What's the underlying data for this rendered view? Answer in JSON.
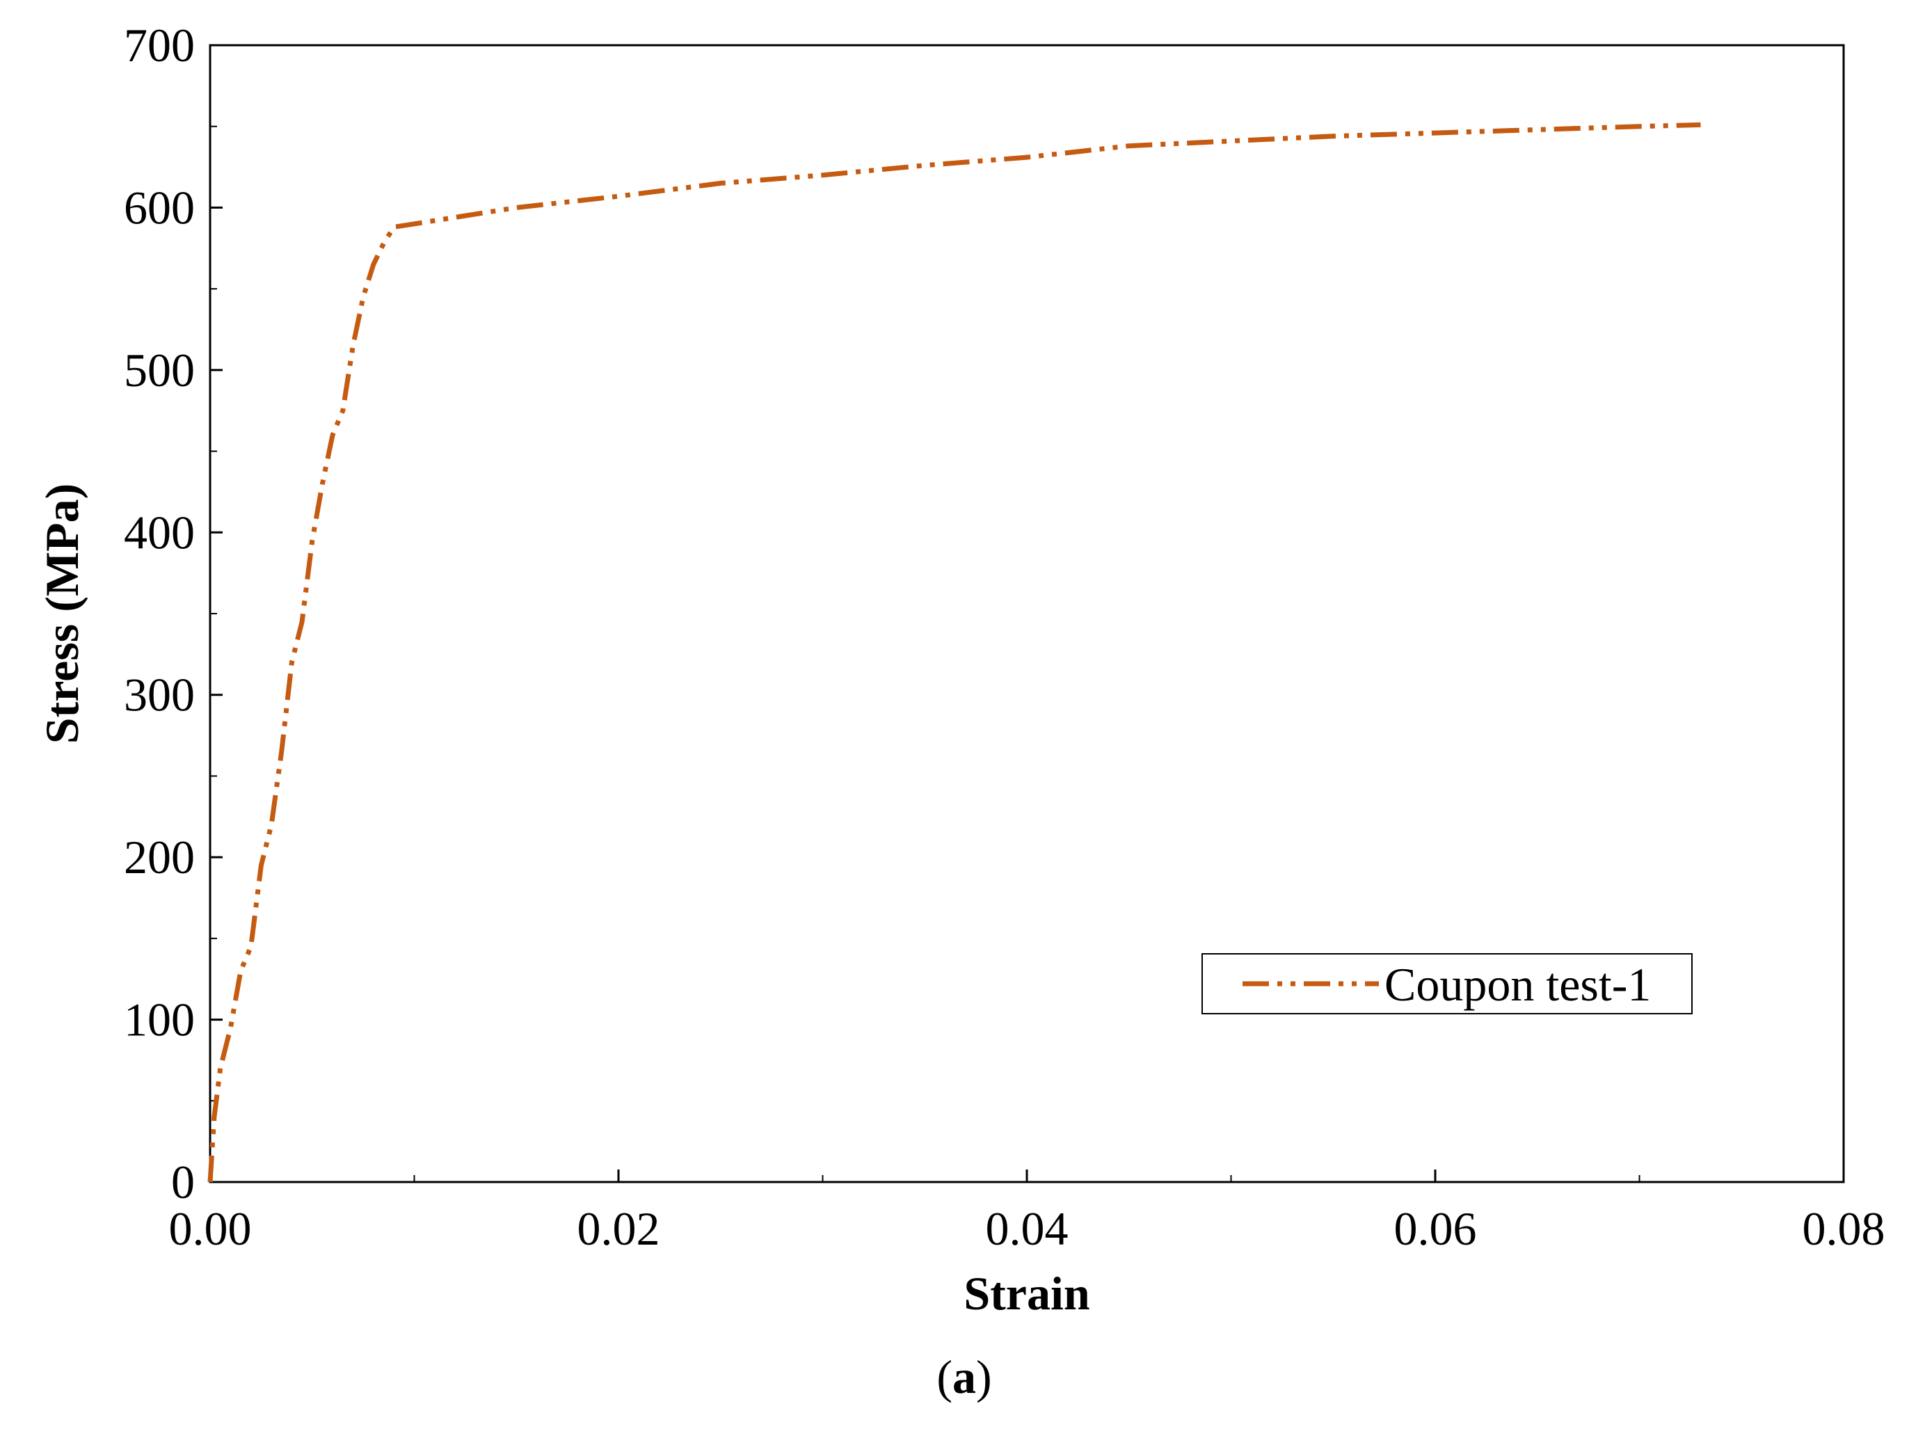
{
  "caption": {
    "open": "(",
    "letter": "a",
    "close": ")"
  },
  "chart_data": {
    "type": "line",
    "xlabel": "Strain",
    "ylabel": "Stress (MPa)",
    "xlim": [
      0,
      0.08
    ],
    "ylim": [
      0,
      700
    ],
    "x_ticks": [
      "0.00",
      "0.02",
      "0.04",
      "0.06",
      "0.08"
    ],
    "y_ticks": [
      "0",
      "100",
      "200",
      "300",
      "400",
      "500",
      "600",
      "700"
    ],
    "grid": false,
    "legend_position": "lower-right",
    "series": [
      {
        "name": "Coupon test-1",
        "color": "#c55a11",
        "line_style": "dash-dot-dot",
        "x": [
          0,
          0.0002,
          0.0005,
          0.001,
          0.0015,
          0.002,
          0.0025,
          0.003,
          0.0035,
          0.004,
          0.0045,
          0.005,
          0.0055,
          0.006,
          0.0065,
          0.007,
          0.0075,
          0.008,
          0.0085,
          0.009,
          0.01,
          0.012,
          0.015,
          0.02,
          0.025,
          0.03,
          0.035,
          0.04,
          0.045,
          0.05,
          0.055,
          0.06,
          0.065,
          0.07,
          0.073
        ],
        "y": [
          0,
          40,
          70,
          95,
          130,
          145,
          195,
          220,
          265,
          320,
          345,
          395,
          430,
          460,
          475,
          515,
          545,
          565,
          578,
          588,
          590,
          594,
          600,
          607,
          615,
          620,
          626,
          631,
          638,
          641,
          644,
          646,
          648,
          650,
          651
        ]
      }
    ]
  }
}
